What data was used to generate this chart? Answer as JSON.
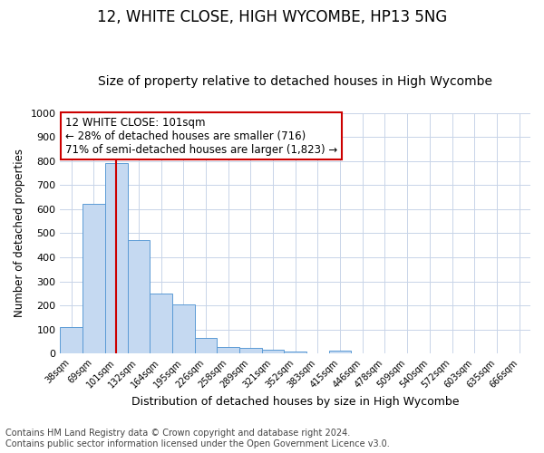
{
  "title1": "12, WHITE CLOSE, HIGH WYCOMBE, HP13 5NG",
  "title2": "Size of property relative to detached houses in High Wycombe",
  "xlabel": "Distribution of detached houses by size in High Wycombe",
  "ylabel": "Number of detached properties",
  "bin_labels": [
    "38sqm",
    "69sqm",
    "101sqm",
    "132sqm",
    "164sqm",
    "195sqm",
    "226sqm",
    "258sqm",
    "289sqm",
    "321sqm",
    "352sqm",
    "383sqm",
    "415sqm",
    "446sqm",
    "478sqm",
    "509sqm",
    "540sqm",
    "572sqm",
    "603sqm",
    "635sqm",
    "666sqm"
  ],
  "bar_values": [
    110,
    620,
    790,
    470,
    250,
    205,
    63,
    28,
    22,
    15,
    10,
    0,
    12,
    0,
    0,
    0,
    0,
    0,
    0,
    0,
    0
  ],
  "bar_color": "#c5d9f1",
  "bar_edge_color": "#5b9bd5",
  "vline_color": "#cc0000",
  "annotation_text": "12 WHITE CLOSE: 101sqm\n← 28% of detached houses are smaller (716)\n71% of semi-detached houses are larger (1,823) →",
  "annotation_box_color": "#ffffff",
  "annotation_box_edge_color": "#cc0000",
  "ylim": [
    0,
    1000
  ],
  "yticks": [
    0,
    100,
    200,
    300,
    400,
    500,
    600,
    700,
    800,
    900,
    1000
  ],
  "footer_text": "Contains HM Land Registry data © Crown copyright and database right 2024.\nContains public sector information licensed under the Open Government Licence v3.0.",
  "bg_color": "#ffffff",
  "grid_color": "#c8d4e8",
  "title1_fontsize": 12,
  "title2_fontsize": 10,
  "annotation_fontsize": 8.5,
  "footer_fontsize": 7,
  "ylabel_fontsize": 8.5,
  "xlabel_fontsize": 9,
  "ytick_fontsize": 8,
  "xtick_fontsize": 7
}
